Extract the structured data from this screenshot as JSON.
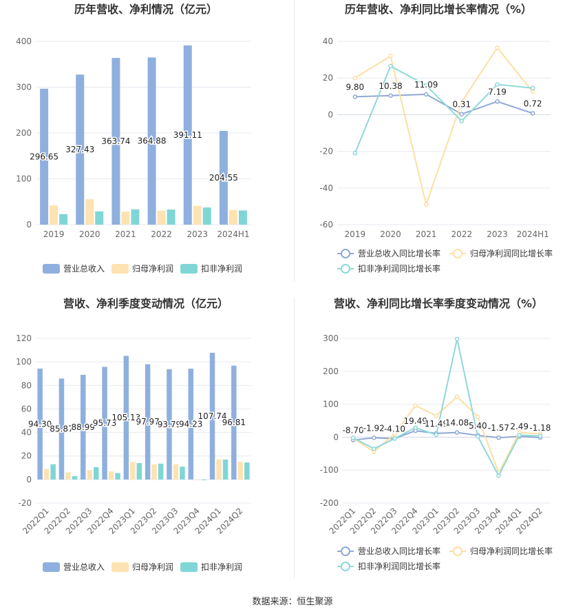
{
  "footer": {
    "source": "数据来源：恒生聚源"
  },
  "colors": {
    "revenue": "#8fb0de",
    "net_profit": "#fde3b2",
    "deducted_profit": "#80d6d6",
    "rev_growth": "#8fa8d4",
    "np_growth": "#fddfa3",
    "dp_growth": "#8ed8d8",
    "grid": "#e6e9f0",
    "axis_text": "#666666"
  },
  "chart_data": [
    {
      "type": "bar",
      "title": "历年营收、净利情况（亿元）",
      "categories": [
        "2019",
        "2020",
        "2021",
        "2022",
        "2023",
        "2024H1"
      ],
      "ylim": [
        0,
        400
      ],
      "yticks": [
        0,
        100,
        200,
        300,
        400
      ],
      "grid": true,
      "legend_position": "bottom",
      "series": [
        {
          "name": "营业总收入",
          "values": [
            296.65,
            327.43,
            363.74,
            364.88,
            391.11,
            204.55
          ],
          "labels": [
            "296.65",
            "327.43",
            "363.74",
            "364.88",
            "391.11",
            "204.55"
          ]
        },
        {
          "name": "归母净利润",
          "values": [
            42.0,
            55.5,
            28.5,
            30.5,
            41.0,
            32.0
          ]
        },
        {
          "name": "扣非净利润",
          "values": [
            23.0,
            29.0,
            33.5,
            33.0,
            37.5,
            31.0
          ]
        }
      ]
    },
    {
      "type": "line",
      "title": "历年营收、净利同比增长率情况（%）",
      "categories": [
        "2019",
        "2020",
        "2021",
        "2022",
        "2023",
        "2024H1"
      ],
      "ylim": [
        -60,
        40
      ],
      "yticks": [
        -60,
        -40,
        -20,
        0,
        20,
        40
      ],
      "grid": true,
      "legend_position": "bottom",
      "series": [
        {
          "name": "营业总收入同比增长率",
          "values": [
            9.8,
            10.38,
            11.09,
            0.31,
            7.19,
            0.72
          ],
          "labels": [
            "9.80",
            "10.38",
            "11.09",
            "0.31",
            "7.19",
            "0.72"
          ]
        },
        {
          "name": "归母净利润同比增长率",
          "values": [
            20.0,
            32.0,
            -49.0,
            7.0,
            36.5,
            12.5
          ]
        },
        {
          "name": "扣非净利润同比增长率",
          "values": [
            -21.0,
            26.5,
            16.0,
            -3.5,
            16.5,
            14.5
          ]
        }
      ]
    },
    {
      "type": "bar",
      "title": "营收、净利季度变动情况（亿元）",
      "categories": [
        "2022Q1",
        "2022Q2",
        "2022Q3",
        "2022Q4",
        "2023Q1",
        "2023Q2",
        "2023Q3",
        "2023Q4",
        "2024Q1",
        "2024Q2"
      ],
      "ylim": [
        -20,
        120
      ],
      "yticks": [
        -20,
        0,
        20,
        40,
        60,
        80,
        100,
        120
      ],
      "grid": true,
      "legend_position": "bottom",
      "series": [
        {
          "name": "营业总收入",
          "values": [
            94.3,
            85.87,
            88.99,
            95.73,
            105.13,
            97.97,
            93.79,
            94.23,
            107.74,
            96.81
          ],
          "labels": [
            "94.30",
            "85.87",
            "88.99",
            "95.73",
            "105.13",
            "97.97",
            "93.79",
            "94.23",
            "107.74",
            "96.81"
          ]
        },
        {
          "name": "归母净利润",
          "values": [
            9.0,
            6.0,
            8.0,
            7.0,
            15.0,
            13.0,
            13.0,
            -0.5,
            17.0,
            15.0
          ]
        },
        {
          "name": "扣非净利润",
          "values": [
            13.0,
            3.0,
            10.5,
            5.5,
            14.0,
            13.5,
            11.0,
            -0.5,
            17.0,
            14.5
          ]
        }
      ]
    },
    {
      "type": "line",
      "title": "营收、净利同比增长率季度变动情况（%）",
      "categories": [
        "2022Q1",
        "2022Q2",
        "2022Q3",
        "2022Q4",
        "2023Q1",
        "2023Q2",
        "2023Q3",
        "2023Q4",
        "2024Q1",
        "2024Q2"
      ],
      "ylim": [
        -200,
        300
      ],
      "yticks": [
        -200,
        -100,
        0,
        100,
        200,
        300
      ],
      "grid": true,
      "legend_position": "bottom",
      "series": [
        {
          "name": "营业总收入同比增长率",
          "values": [
            -8.7,
            -1.92,
            -4.1,
            19.49,
            11.49,
            14.08,
            5.4,
            -1.57,
            2.49,
            -1.18
          ],
          "labels": [
            "-8.70",
            "-1.92",
            "-4.10",
            "19.49",
            "11.49",
            "14.08",
            "5.40",
            "-1.57",
            "2.49",
            "-1.18"
          ]
        },
        {
          "name": "归母净利润同比增长率",
          "values": [
            -3.0,
            -44.0,
            10.0,
            96.0,
            65.0,
            123.0,
            62.0,
            -108.0,
            14.0,
            10.0
          ]
        },
        {
          "name": "扣非净利润同比增长率",
          "values": [
            -2.0,
            -35.0,
            -4.0,
            29.0,
            7.0,
            298.0,
            2.0,
            -117.0,
            6.0,
            4.0
          ]
        }
      ]
    }
  ]
}
